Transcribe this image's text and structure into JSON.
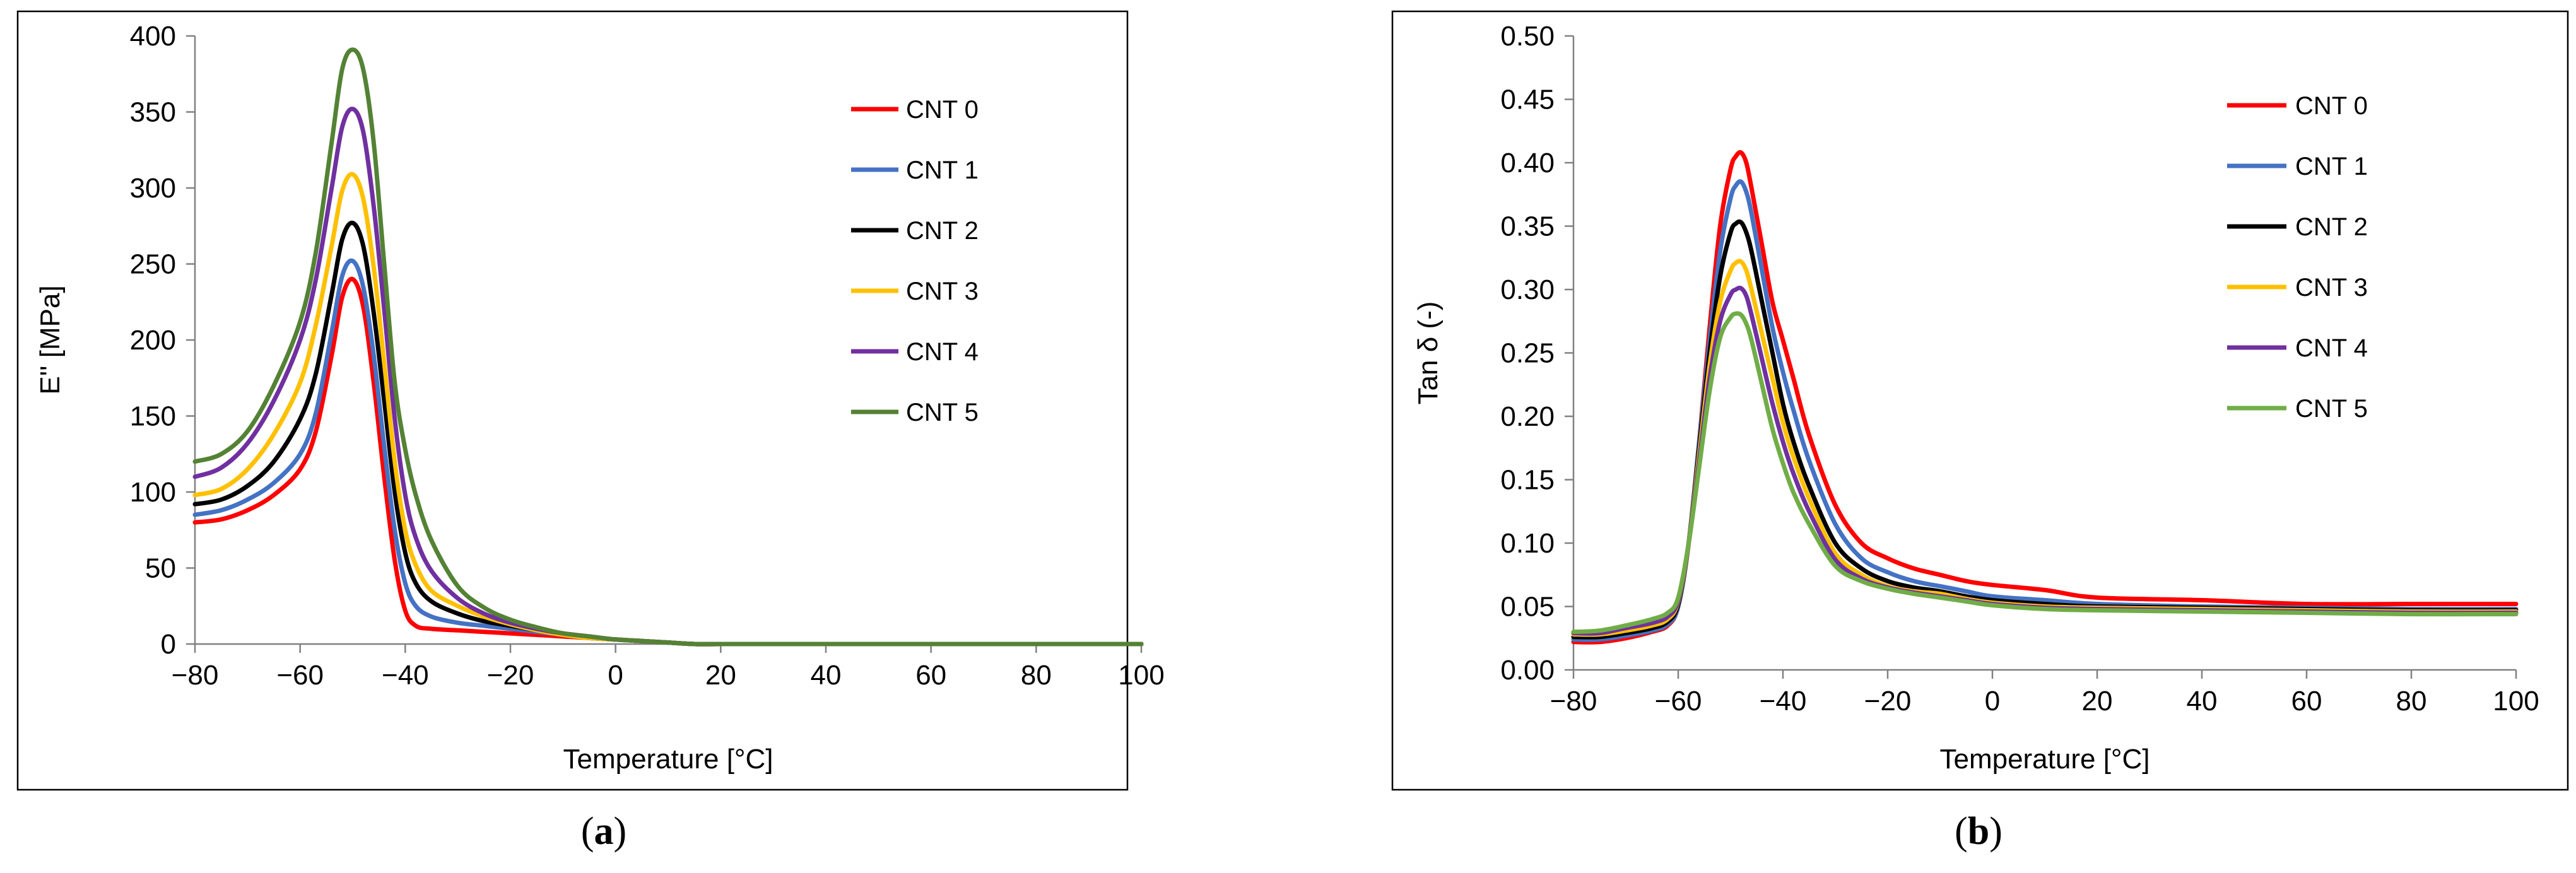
{
  "chart_data": [
    {
      "id": "a",
      "type": "line",
      "title": "",
      "caption_letter": "a",
      "xlabel": "Temperature [°C]",
      "ylabel": "E'' [MPa]",
      "xlim": [
        -80,
        100
      ],
      "ylim": [
        0,
        400
      ],
      "xticks": [
        -80,
        -60,
        -40,
        -20,
        0,
        20,
        40,
        60,
        80,
        100
      ],
      "yticks": [
        0,
        50,
        100,
        150,
        200,
        250,
        300,
        350,
        400
      ],
      "ytick_labels": [
        "0",
        "50",
        "100",
        "150",
        "200",
        "250",
        "300",
        "350",
        "400"
      ],
      "grid": false,
      "legend_position": "top-right",
      "series": [
        {
          "name": "CNT 0",
          "color": "#ff0000",
          "x": [
            -80,
            -75,
            -70,
            -65,
            -60,
            -57,
            -54,
            -52,
            -50,
            -48,
            -46,
            -44,
            -42,
            -40,
            -38,
            -35,
            -30,
            -25,
            -20,
            -15,
            -10,
            -5,
            0,
            5,
            10,
            15,
            20,
            40,
            60,
            80,
            100
          ],
          "y": [
            80,
            82,
            88,
            98,
            115,
            140,
            190,
            228,
            240,
            222,
            172,
            110,
            55,
            22,
            12,
            10,
            9,
            8,
            7,
            6,
            5,
            4,
            3,
            2,
            1,
            0,
            0,
            0,
            0,
            0,
            0
          ]
        },
        {
          "name": "CNT 1",
          "color": "#4472c4",
          "x": [
            -80,
            -75,
            -70,
            -65,
            -60,
            -57,
            -54,
            -52,
            -50,
            -48,
            -46,
            -44,
            -42,
            -40,
            -38,
            -35,
            -30,
            -25,
            -20,
            -15,
            -10,
            -5,
            0,
            5,
            10,
            15,
            20,
            40,
            60,
            80,
            100
          ],
          "y": [
            85,
            88,
            95,
            106,
            125,
            152,
            205,
            242,
            252,
            235,
            190,
            130,
            75,
            40,
            25,
            18,
            14,
            12,
            10,
            8,
            6,
            4,
            3,
            2,
            1,
            0,
            0,
            0,
            0,
            0,
            0
          ]
        },
        {
          "name": "CNT 2",
          "color": "#000000",
          "x": [
            -80,
            -75,
            -70,
            -65,
            -60,
            -57,
            -54,
            -52,
            -50,
            -48,
            -46,
            -44,
            -42,
            -40,
            -38,
            -35,
            -30,
            -25,
            -20,
            -15,
            -10,
            -5,
            0,
            5,
            10,
            15,
            20,
            40,
            60,
            80,
            100
          ],
          "y": [
            92,
            95,
            104,
            120,
            148,
            178,
            230,
            266,
            277,
            262,
            218,
            160,
            100,
            60,
            40,
            28,
            20,
            15,
            12,
            9,
            6,
            4,
            3,
            2,
            1,
            0,
            0,
            0,
            0,
            0,
            0
          ]
        },
        {
          "name": "CNT 3",
          "color": "#ffc000",
          "x": [
            -80,
            -75,
            -70,
            -65,
            -60,
            -57,
            -54,
            -52,
            -50,
            -48,
            -46,
            -44,
            -42,
            -40,
            -38,
            -35,
            -30,
            -25,
            -20,
            -15,
            -10,
            -5,
            0,
            5,
            10,
            15,
            20,
            40,
            60,
            80,
            100
          ],
          "y": [
            98,
            102,
            115,
            138,
            172,
            210,
            262,
            298,
            309,
            293,
            248,
            185,
            120,
            75,
            52,
            35,
            25,
            18,
            13,
            9,
            6,
            4,
            3,
            2,
            1,
            0,
            0,
            0,
            0,
            0,
            0
          ]
        },
        {
          "name": "CNT 4",
          "color": "#7030a0",
          "x": [
            -80,
            -75,
            -70,
            -65,
            -60,
            -57,
            -54,
            -52,
            -50,
            -48,
            -46,
            -44,
            -42,
            -40,
            -38,
            -35,
            -30,
            -25,
            -20,
            -15,
            -10,
            -5,
            0,
            5,
            10,
            15,
            20,
            40,
            60,
            80,
            100
          ],
          "y": [
            110,
            116,
            132,
            160,
            200,
            240,
            300,
            340,
            352,
            337,
            288,
            220,
            148,
            98,
            70,
            48,
            30,
            20,
            14,
            10,
            7,
            5,
            3,
            2,
            1,
            0,
            0,
            0,
            0,
            0,
            0
          ]
        },
        {
          "name": "CNT 5",
          "color": "#548235",
          "x": [
            -80,
            -75,
            -70,
            -65,
            -60,
            -57,
            -54,
            -52,
            -50,
            -48,
            -46,
            -44,
            -42,
            -40,
            -38,
            -35,
            -30,
            -25,
            -20,
            -15,
            -10,
            -5,
            0,
            5,
            10,
            15,
            20,
            40,
            60,
            80,
            100
          ],
          "y": [
            120,
            125,
            140,
            170,
            212,
            258,
            330,
            378,
            391,
            378,
            330,
            250,
            172,
            128,
            98,
            68,
            38,
            24,
            16,
            11,
            7,
            5,
            3,
            2,
            1,
            0,
            0,
            0,
            0,
            0,
            0
          ]
        }
      ]
    },
    {
      "id": "b",
      "type": "line",
      "title": "",
      "caption_letter": "b",
      "xlabel": "Temperature [°C]",
      "ylabel": "Tan δ (-)",
      "xlim": [
        -80,
        100
      ],
      "ylim": [
        0,
        0.5
      ],
      "xticks": [
        -80,
        -60,
        -40,
        -20,
        0,
        20,
        40,
        60,
        80,
        100
      ],
      "yticks": [
        0,
        0.05,
        0.1,
        0.15,
        0.2,
        0.25,
        0.3,
        0.35,
        0.4,
        0.45,
        0.5
      ],
      "ytick_labels": [
        "0.00",
        "0.05",
        "0.10",
        "0.15",
        "0.20",
        "0.25",
        "0.30",
        "0.35",
        "0.40",
        "0.45",
        "0.50"
      ],
      "grid": false,
      "legend_position": "top-right",
      "series": [
        {
          "name": "CNT 0",
          "color": "#ff0000",
          "x": [
            -80,
            -75,
            -70,
            -65,
            -62,
            -60,
            -58,
            -56,
            -54,
            -52,
            -50,
            -49,
            -48,
            -47,
            -46,
            -44,
            -42,
            -40,
            -38,
            -35,
            -30,
            -25,
            -20,
            -15,
            -10,
            -5,
            0,
            10,
            20,
            40,
            60,
            80,
            100
          ],
          "y": [
            0.022,
            0.022,
            0.025,
            0.03,
            0.035,
            0.05,
            0.1,
            0.18,
            0.27,
            0.35,
            0.395,
            0.405,
            0.408,
            0.4,
            0.38,
            0.335,
            0.29,
            0.26,
            0.23,
            0.185,
            0.13,
            0.1,
            0.088,
            0.08,
            0.075,
            0.07,
            0.067,
            0.063,
            0.057,
            0.055,
            0.052,
            0.052,
            0.052
          ]
        },
        {
          "name": "CNT 1",
          "color": "#4472c4",
          "x": [
            -80,
            -75,
            -70,
            -65,
            -62,
            -60,
            -58,
            -56,
            -54,
            -52,
            -50,
            -49,
            -48,
            -47,
            -46,
            -44,
            -42,
            -40,
            -38,
            -35,
            -30,
            -25,
            -20,
            -15,
            -10,
            -5,
            0,
            10,
            20,
            40,
            60,
            80,
            100
          ],
          "y": [
            0.024,
            0.024,
            0.027,
            0.031,
            0.036,
            0.05,
            0.1,
            0.18,
            0.26,
            0.33,
            0.372,
            0.382,
            0.385,
            0.377,
            0.36,
            0.315,
            0.27,
            0.235,
            0.205,
            0.165,
            0.115,
            0.088,
            0.077,
            0.07,
            0.066,
            0.062,
            0.058,
            0.055,
            0.052,
            0.05,
            0.049,
            0.048,
            0.048
          ]
        },
        {
          "name": "CNT 2",
          "color": "#000000",
          "x": [
            -80,
            -75,
            -70,
            -65,
            -62,
            -60,
            -58,
            -56,
            -54,
            -52,
            -50,
            -49,
            -48,
            -47,
            -46,
            -44,
            -42,
            -40,
            -38,
            -35,
            -30,
            -25,
            -20,
            -15,
            -10,
            -5,
            0,
            10,
            20,
            40,
            60,
            80,
            100
          ],
          "y": [
            0.026,
            0.026,
            0.029,
            0.033,
            0.038,
            0.052,
            0.1,
            0.175,
            0.25,
            0.31,
            0.345,
            0.352,
            0.353,
            0.345,
            0.33,
            0.29,
            0.25,
            0.21,
            0.18,
            0.145,
            0.1,
            0.08,
            0.07,
            0.065,
            0.062,
            0.058,
            0.055,
            0.052,
            0.05,
            0.049,
            0.048,
            0.047,
            0.047
          ]
        },
        {
          "name": "CNT 3",
          "color": "#ffc000",
          "x": [
            -80,
            -75,
            -70,
            -65,
            -62,
            -60,
            -58,
            -56,
            -54,
            -52,
            -50,
            -49,
            -48,
            -47,
            -46,
            -44,
            -42,
            -40,
            -38,
            -35,
            -30,
            -25,
            -20,
            -15,
            -10,
            -5,
            0,
            10,
            20,
            40,
            60,
            80,
            100
          ],
          "y": [
            0.028,
            0.028,
            0.031,
            0.035,
            0.04,
            0.054,
            0.1,
            0.17,
            0.24,
            0.29,
            0.315,
            0.321,
            0.322,
            0.315,
            0.3,
            0.265,
            0.23,
            0.195,
            0.168,
            0.135,
            0.092,
            0.075,
            0.066,
            0.062,
            0.06,
            0.056,
            0.053,
            0.05,
            0.049,
            0.048,
            0.047,
            0.046,
            0.046
          ]
        },
        {
          "name": "CNT 4",
          "color": "#7030a0",
          "x": [
            -80,
            -75,
            -70,
            -65,
            -62,
            -60,
            -58,
            -56,
            -54,
            -52,
            -50,
            -49,
            -48,
            -47,
            -46,
            -44,
            -42,
            -40,
            -38,
            -35,
            -30,
            -25,
            -20,
            -15,
            -10,
            -5,
            0,
            10,
            20,
            40,
            60,
            80,
            100
          ],
          "y": [
            0.029,
            0.029,
            0.033,
            0.037,
            0.042,
            0.055,
            0.1,
            0.165,
            0.23,
            0.275,
            0.296,
            0.3,
            0.301,
            0.295,
            0.28,
            0.245,
            0.21,
            0.18,
            0.155,
            0.125,
            0.087,
            0.072,
            0.065,
            0.061,
            0.058,
            0.055,
            0.052,
            0.049,
            0.048,
            0.047,
            0.046,
            0.045,
            0.045
          ]
        },
        {
          "name": "CNT 5",
          "color": "#70ad47",
          "x": [
            -80,
            -75,
            -70,
            -65,
            -62,
            -60,
            -58,
            -56,
            -54,
            -52,
            -50,
            -49,
            -48,
            -47,
            -46,
            -44,
            -42,
            -40,
            -38,
            -35,
            -30,
            -25,
            -20,
            -15,
            -10,
            -5,
            0,
            10,
            20,
            40,
            60,
            80,
            100
          ],
          "y": [
            0.03,
            0.031,
            0.035,
            0.04,
            0.045,
            0.057,
            0.1,
            0.16,
            0.22,
            0.262,
            0.278,
            0.281,
            0.28,
            0.273,
            0.26,
            0.225,
            0.19,
            0.163,
            0.14,
            0.115,
            0.082,
            0.07,
            0.064,
            0.06,
            0.057,
            0.054,
            0.051,
            0.048,
            0.047,
            0.046,
            0.045,
            0.044,
            0.044
          ]
        }
      ]
    }
  ]
}
